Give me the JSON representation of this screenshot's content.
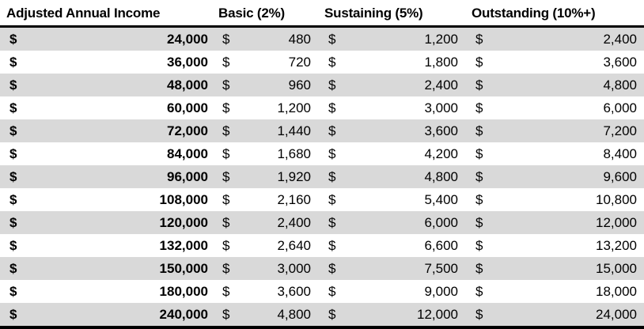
{
  "colors": {
    "stripe_gray": "#d9d9d9",
    "row_white": "#ffffff",
    "rule_black": "#000000",
    "text": "#000000"
  },
  "table": {
    "headers": [
      "Adjusted Annual Income",
      "Basic (2%)",
      "Sustaining (5%)",
      "Outstanding (10%+)"
    ],
    "currency_symbol": "$",
    "rows": [
      [
        "24,000",
        "480",
        "1,200",
        "2,400"
      ],
      [
        "36,000",
        "720",
        "1,800",
        "3,600"
      ],
      [
        "48,000",
        "960",
        "2,400",
        "4,800"
      ],
      [
        "60,000",
        "1,200",
        "3,000",
        "6,000"
      ],
      [
        "72,000",
        "1,440",
        "3,600",
        "7,200"
      ],
      [
        "84,000",
        "1,680",
        "4,200",
        "8,400"
      ],
      [
        "96,000",
        "1,920",
        "4,800",
        "9,600"
      ],
      [
        "108,000",
        "2,160",
        "5,400",
        "10,800"
      ],
      [
        "120,000",
        "2,400",
        "6,000",
        "12,000"
      ],
      [
        "132,000",
        "2,640",
        "6,600",
        "13,200"
      ],
      [
        "150,000",
        "3,000",
        "7,500",
        "15,000"
      ],
      [
        "180,000",
        "3,600",
        "9,000",
        "18,000"
      ],
      [
        "240,000",
        "4,800",
        "12,000",
        "24,000"
      ]
    ]
  },
  "chart_data": {
    "type": "table",
    "title": "",
    "columns": [
      "Adjusted Annual Income",
      "Basic (2%)",
      "Sustaining (5%)",
      "Outstanding (10%+)"
    ],
    "rows": [
      [
        24000,
        480,
        1200,
        2400
      ],
      [
        36000,
        720,
        1800,
        3600
      ],
      [
        48000,
        960,
        2400,
        4800
      ],
      [
        60000,
        1200,
        3000,
        6000
      ],
      [
        72000,
        1440,
        3600,
        7200
      ],
      [
        84000,
        1680,
        4200,
        8400
      ],
      [
        96000,
        1920,
        4800,
        9600
      ],
      [
        108000,
        2160,
        5400,
        10800
      ],
      [
        120000,
        2400,
        6000,
        12000
      ],
      [
        132000,
        2640,
        6600,
        13200
      ],
      [
        150000,
        3000,
        7500,
        15000
      ],
      [
        180000,
        3600,
        9000,
        18000
      ],
      [
        240000,
        4800,
        12000,
        24000
      ]
    ],
    "currency": "$",
    "layout": {
      "row_striping": "alternating gray starting with first data row",
      "bold_columns": [
        "Adjusted Annual Income"
      ],
      "number_format": "accounting ($ left-aligned, value right-aligned)"
    }
  }
}
